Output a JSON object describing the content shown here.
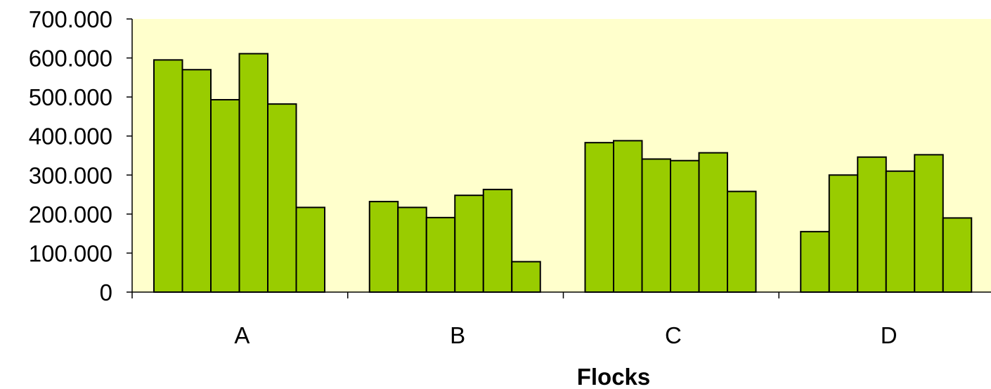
{
  "chart_data": {
    "type": "bar",
    "categories": [
      "A",
      "B",
      "C",
      "D"
    ],
    "series": [
      {
        "values": [
          595,
          232,
          383,
          155
        ]
      },
      {
        "values": [
          570,
          217,
          388,
          300
        ]
      },
      {
        "values": [
          493,
          191,
          341,
          346
        ]
      },
      {
        "values": [
          611,
          248,
          337,
          310
        ]
      },
      {
        "values": [
          482,
          263,
          357,
          352
        ]
      },
      {
        "values": [
          217,
          78,
          258,
          190
        ]
      }
    ],
    "title": "",
    "xlabel": "Flocks",
    "ylabel": "",
    "ylim": [
      0,
      700
    ],
    "yticks": [
      0,
      100,
      200,
      300,
      400,
      500,
      600,
      700
    ],
    "ytick_labels": [
      "0",
      "100.000",
      "200.000",
      "300.000",
      "400.000",
      "500.000",
      "600.000",
      "700.000"
    ],
    "grid": false,
    "legend": "none",
    "colors": {
      "bar_fill": "#99cc00",
      "bar_stroke": "#000000",
      "plot_background": "#ffffcc"
    }
  }
}
